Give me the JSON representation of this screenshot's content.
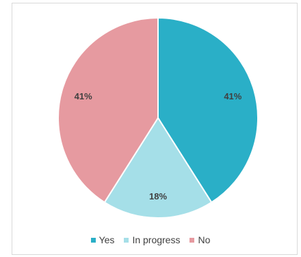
{
  "chart_data": {
    "type": "pie",
    "slices": [
      {
        "label": "Yes",
        "value": 41,
        "display": "41%",
        "color": "#2aafc7"
      },
      {
        "label": "In progress",
        "value": 18,
        "display": "18%",
        "color": "#a5dfe8"
      },
      {
        "label": "No",
        "value": 41,
        "display": "41%",
        "color": "#e69aa0"
      }
    ],
    "legend_position": "bottom"
  }
}
